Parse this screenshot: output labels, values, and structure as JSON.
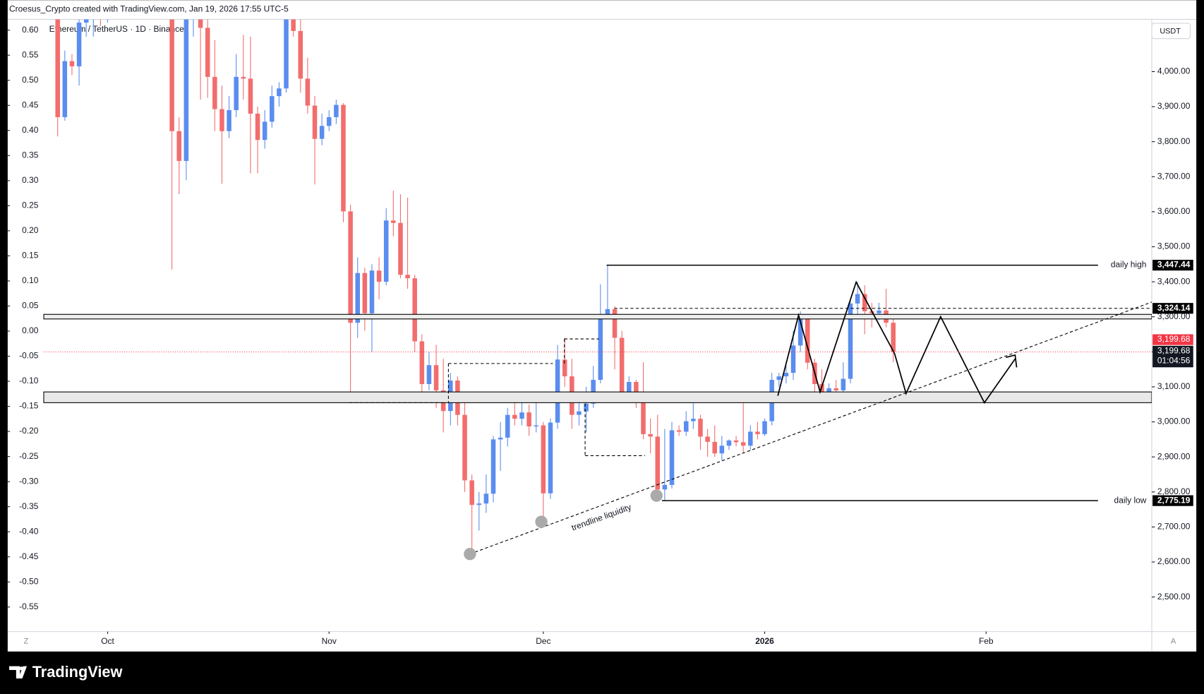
{
  "header": "Croesus_Crypto created with TradingView.com, Jan 19, 2026 17:55 UTC-5",
  "brand": "TradingView",
  "chart_data": {
    "type": "candlestick",
    "symbol": "Ethereum / TetherUS · 1D · Binance",
    "currency": "USDT",
    "up_color": "#5b8def",
    "down_color": "#f26d6d",
    "ohlc": [
      [
        4160,
        4200,
        3815,
        3870
      ],
      [
        3870,
        4060,
        3860,
        4030
      ],
      [
        4030,
        4050,
        3990,
        4015
      ],
      [
        4015,
        4150,
        3960,
        4140
      ],
      [
        4140,
        4180,
        4100,
        4165
      ],
      [
        4165,
        4230,
        4100,
        4215
      ],
      [
        4215,
        4240,
        4130,
        4150
      ],
      [
        4150,
        4360,
        4140,
        4350
      ],
      [
        4350,
        4500,
        4330,
        4480
      ],
      [
        4480,
        4550,
        4420,
        4510
      ],
      [
        4510,
        4530,
        4460,
        4490
      ],
      [
        4490,
        4590,
        4460,
        4520
      ],
      [
        4520,
        4750,
        4500,
        4690
      ],
      [
        4690,
        4720,
        4420,
        4450
      ],
      [
        4450,
        4560,
        4430,
        4525
      ],
      [
        4525,
        4540,
        4320,
        4370
      ],
      [
        4370,
        4390,
        3435,
        3830
      ],
      [
        3830,
        3870,
        3650,
        3745
      ],
      [
        3745,
        4190,
        3690,
        4150
      ],
      [
        4150,
        4290,
        4100,
        4245
      ],
      [
        4245,
        4260,
        3920,
        4125
      ],
      [
        4125,
        4220,
        3925,
        3985
      ],
      [
        3985,
        4090,
        3830,
        3893
      ],
      [
        3893,
        3960,
        3680,
        3830
      ],
      [
        3830,
        3930,
        3810,
        3890
      ],
      [
        3890,
        4050,
        3870,
        3985
      ],
      [
        3985,
        4105,
        3920,
        3980
      ],
      [
        3980,
        4100,
        3710,
        3880
      ],
      [
        3880,
        3900,
        3710,
        3805
      ],
      [
        3805,
        3890,
        3780,
        3857
      ],
      [
        3857,
        3960,
        3840,
        3930
      ],
      [
        3930,
        3970,
        3900,
        3952
      ],
      [
        3952,
        4180,
        3940,
        4160
      ],
      [
        4160,
        4250,
        4100,
        4116
      ],
      [
        4116,
        4160,
        3940,
        3980
      ],
      [
        3980,
        4040,
        3880,
        3903
      ],
      [
        3903,
        3930,
        3678,
        3808
      ],
      [
        3808,
        3880,
        3790,
        3845
      ],
      [
        3845,
        3890,
        3830,
        3870
      ],
      [
        3870,
        3920,
        3850,
        3905
      ],
      [
        3905,
        3910,
        3570,
        3601
      ],
      [
        3601,
        3620,
        3053,
        3283
      ],
      [
        3283,
        3470,
        3240,
        3425
      ],
      [
        3425,
        3440,
        3260,
        3310
      ],
      [
        3310,
        3450,
        3200,
        3432
      ],
      [
        3432,
        3470,
        3350,
        3400
      ],
      [
        3400,
        3610,
        3390,
        3575
      ],
      [
        3575,
        3660,
        3530,
        3568
      ],
      [
        3568,
        3650,
        3410,
        3420
      ],
      [
        3420,
        3640,
        3380,
        3410
      ],
      [
        3410,
        3420,
        3200,
        3230
      ],
      [
        3230,
        3250,
        3060,
        3108
      ],
      [
        3108,
        3200,
        3090,
        3162
      ],
      [
        3162,
        3220,
        3040,
        3090
      ],
      [
        3090,
        3180,
        2970,
        3031
      ],
      [
        3031,
        3140,
        2990,
        3118
      ],
      [
        3118,
        3130,
        2990,
        3020
      ],
      [
        3020,
        3060,
        2800,
        2833
      ],
      [
        2833,
        2850,
        2625,
        2763
      ],
      [
        2763,
        2800,
        2690,
        2767
      ],
      [
        2767,
        2850,
        2740,
        2795
      ],
      [
        2795,
        2960,
        2770,
        2950
      ],
      [
        2950,
        3000,
        2860,
        2955
      ],
      [
        2955,
        3040,
        2930,
        3020
      ],
      [
        3020,
        3060,
        2990,
        3009
      ],
      [
        3009,
        3080,
        2990,
        3027
      ],
      [
        3027,
        3050,
        2960,
        2987
      ],
      [
        2987,
        3060,
        2970,
        2990
      ],
      [
        2990,
        3000,
        2713,
        2796
      ],
      [
        2796,
        3010,
        2780,
        2998
      ],
      [
        2998,
        3220,
        2980,
        3178
      ],
      [
        3178,
        3240,
        3100,
        3130
      ],
      [
        3130,
        3180,
        2980,
        3020
      ],
      [
        3020,
        3060,
        2990,
        3030
      ],
      [
        3030,
        3100,
        2970,
        3052
      ],
      [
        3052,
        3160,
        3040,
        3120
      ],
      [
        3120,
        3393,
        3110,
        3305
      ],
      [
        3305,
        3447.44,
        3300,
        3322
      ],
      [
        3322,
        3330,
        3150,
        3240
      ],
      [
        3240,
        3260,
        3060,
        3085
      ],
      [
        3085,
        3130,
        3070,
        3114
      ],
      [
        3114,
        3120,
        3040,
        3059
      ],
      [
        3059,
        3170,
        2950,
        2965
      ],
      [
        2965,
        3010,
        2910,
        2958
      ],
      [
        2958,
        3020,
        2800,
        2807
      ],
      [
        2807,
        2980,
        2775.19,
        2820
      ],
      [
        2820,
        3000,
        2810,
        2976
      ],
      [
        2976,
        2990,
        2960,
        2972
      ],
      [
        2972,
        3030,
        2960,
        3002
      ],
      [
        3002,
        3070,
        2980,
        3009
      ],
      [
        3009,
        3020,
        2920,
        2958
      ],
      [
        2958,
        2980,
        2900,
        2943
      ],
      [
        2943,
        2990,
        2900,
        2910
      ],
      [
        2910,
        2960,
        2890,
        2932
      ],
      [
        2932,
        2950,
        2920,
        2947
      ],
      [
        2947,
        2960,
        2930,
        2942
      ],
      [
        2942,
        3053,
        2910,
        2932
      ],
      [
        2932,
        2990,
        2920,
        2972
      ],
      [
        2972,
        3000,
        2950,
        2965
      ],
      [
        2965,
        3010,
        2960,
        3002
      ],
      [
        3002,
        3140,
        2990,
        3120
      ],
      [
        3120,
        3140,
        3100,
        3130
      ],
      [
        3130,
        3160,
        3110,
        3140
      ],
      [
        3140,
        3260,
        3120,
        3218
      ],
      [
        3218,
        3316,
        3200,
        3294
      ],
      [
        3294,
        3300,
        3150,
        3169
      ],
      [
        3169,
        3180,
        3060,
        3108
      ],
      [
        3108,
        3150,
        3060,
        3085
      ],
      [
        3085,
        3110,
        3070,
        3096
      ],
      [
        3096,
        3120,
        3070,
        3090
      ],
      [
        3090,
        3170,
        3070,
        3123
      ],
      [
        3123,
        3350,
        3110,
        3338
      ],
      [
        3338,
        3400,
        3300,
        3365
      ],
      [
        3365,
        3390,
        3250,
        3316
      ],
      [
        3316,
        3340,
        3270,
        3310
      ],
      [
        3310,
        3340,
        3290,
        3318
      ],
      [
        3318,
        3380,
        3270,
        3283
      ],
      [
        3283,
        3300,
        3170,
        3199.68
      ]
    ],
    "xlim": [
      -7,
      153.2
    ],
    "xticks": [
      {
        "value": 7,
        "label": "Oct"
      },
      {
        "value": 38,
        "label": "Nov"
      },
      {
        "value": 68,
        "label": "Dec"
      },
      {
        "value": 99,
        "label": "2026"
      },
      {
        "value": 130,
        "label": "Feb"
      }
    ],
    "ylim": [
      2401.3,
      4149.1
    ],
    "yticks": [
      {
        "value": 2500,
        "label": "2,500.00"
      },
      {
        "value": 2600,
        "label": "2,600.00"
      },
      {
        "value": 2700,
        "label": "2,700.00"
      },
      {
        "value": 2800,
        "label": "2,800.00"
      },
      {
        "value": 2900,
        "label": "2,900.00"
      },
      {
        "value": 3000,
        "label": "3,000.00"
      },
      {
        "value": 3100,
        "label": "3,100.00"
      },
      {
        "value": 3200,
        "label": "3,200.00"
      },
      {
        "value": 3300,
        "label": "3,300.00"
      },
      {
        "value": 3400,
        "label": "3,400.00"
      },
      {
        "value": 3500,
        "label": "3,500.00"
      },
      {
        "value": 3600,
        "label": "3,600.00"
      },
      {
        "value": 3700,
        "label": "3,700.00"
      },
      {
        "value": 3800,
        "label": "3,800.00"
      },
      {
        "value": 3900,
        "label": "3,900.00"
      },
      {
        "value": 4000,
        "label": "4,000.00"
      }
    ],
    "y2lim": [
      -0.599,
      0.6214
    ],
    "y2ticks": [
      {
        "value": 0.6,
        "label": "0.60"
      },
      0.55,
      {
        "value": 0.5,
        "label": "0.50"
      },
      0.45,
      {
        "value": 0.4,
        "label": "0.40"
      },
      0.35,
      {
        "value": 0.3,
        "label": "0.30"
      },
      0.25,
      {
        "value": 0.2,
        "label": "0.20"
      },
      0.15,
      {
        "value": 0.1,
        "label": "0.10"
      },
      0.05,
      {
        "value": 0,
        "label": "0.00"
      },
      -0.05,
      {
        "value": -0.1,
        "label": "-0.10"
      },
      -0.15,
      {
        "value": -0.2,
        "label": "-0.20"
      },
      -0.25,
      {
        "value": -0.3,
        "label": "-0.30"
      },
      -0.35,
      {
        "value": -0.4,
        "label": "-0.40"
      },
      -0.45,
      {
        "value": -0.5,
        "label": "-0.50"
      },
      -0.55
    ],
    "levels": [
      {
        "name": "daily high",
        "value": 3447.44,
        "label": "3,447.44"
      },
      {
        "value": 3324.14,
        "label": "3,324.14"
      },
      {
        "name": "daily low",
        "value": 2775.19,
        "label": "2,775.19"
      }
    ],
    "last_price": {
      "value": 3199.68,
      "label": "3,199.68"
    },
    "countdown": "01:04:56",
    "annotation": "trendline liquidity",
    "corner_left": "Z",
    "corner_right": "A"
  }
}
